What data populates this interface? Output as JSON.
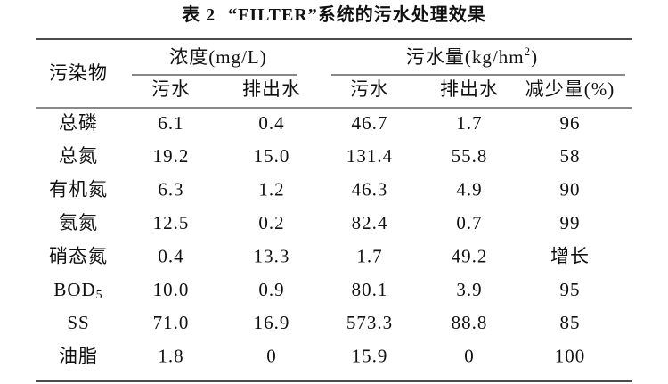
{
  "title": {
    "label": "表 2",
    "text": "“FILTER”系统的污水处理效果"
  },
  "header": {
    "row_label": "污染物",
    "group1": "浓度(mg/L)",
    "group2": {
      "text": "污水量(kg/hm",
      "sup": "2",
      "after": ")"
    },
    "columns": [
      "污水",
      "排出水",
      "污水",
      "排出水",
      "减少量(%)"
    ]
  },
  "table": {
    "rows": [
      [
        "总磷",
        "6.1",
        "0.4",
        "46.7",
        "1.7",
        "96"
      ],
      [
        "总氮",
        "19.2",
        "15.0",
        "131.4",
        "55.8",
        "58"
      ],
      [
        "有机氮",
        "6.3",
        "1.2",
        "46.3",
        "4.9",
        "90"
      ],
      [
        "氨氮",
        "12.5",
        "0.2",
        "82.4",
        "0.7",
        "99"
      ],
      [
        "硝态氮",
        "0.4",
        "13.3",
        "1.7",
        "49.2",
        "增长"
      ],
      [
        {
          "text": "BOD",
          "sub": "5"
        },
        "10.0",
        "0.9",
        "80.1",
        "3.9",
        "95"
      ],
      [
        "SS",
        "71.0",
        "16.9",
        "573.3",
        "88.8",
        "85"
      ],
      [
        "油脂",
        "1.8",
        "0",
        "15.9",
        "0",
        "100"
      ]
    ]
  }
}
